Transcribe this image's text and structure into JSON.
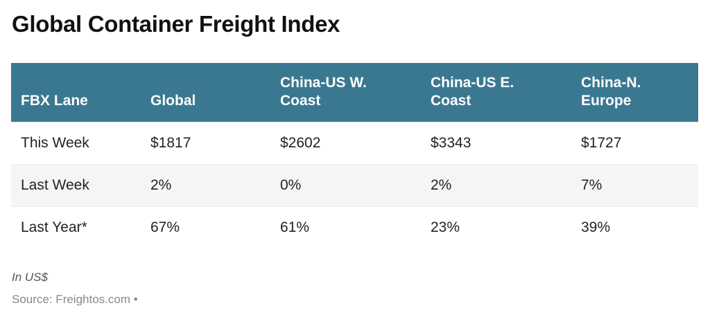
{
  "title": "Global Container Freight Index",
  "table": {
    "headers": [
      "FBX Lane",
      "Global",
      "China-US W. Coast",
      "China-US E. Coast",
      "China-N. Europe"
    ],
    "header_lines": [
      [
        "FBX Lane",
        ""
      ],
      [
        "Global",
        ""
      ],
      [
        "China-US W.",
        "Coast"
      ],
      [
        "China-US E.",
        "Coast"
      ],
      [
        "China-N.",
        "Europe"
      ]
    ],
    "rows": [
      [
        "This Week",
        "$1817",
        "$2602",
        "$3343",
        "$1727"
      ],
      [
        "Last Week",
        "2%",
        "0%",
        "2%",
        "7%"
      ],
      [
        "Last Year*",
        "67%",
        "61%",
        "23%",
        "39%"
      ]
    ]
  },
  "footer": {
    "note": "In US$",
    "source": "Source: Freightos.com •"
  },
  "colors": {
    "header_bg": "#3a7891",
    "header_text": "#ffffff",
    "alt_row_bg": "#f5f5f5"
  },
  "chart_data": {
    "type": "table",
    "title": "Global Container Freight Index",
    "columns": [
      "FBX Lane",
      "Global",
      "China-US W. Coast",
      "China-US E. Coast",
      "China-N. Europe"
    ],
    "rows": [
      {
        "label": "This Week",
        "values": [
          "$1817",
          "$2602",
          "$3343",
          "$1727"
        ]
      },
      {
        "label": "Last Week",
        "values": [
          "2%",
          "0%",
          "2%",
          "7%"
        ]
      },
      {
        "label": "Last Year*",
        "values": [
          "67%",
          "61%",
          "23%",
          "39%"
        ]
      }
    ],
    "this_week_usd": [
      1817,
      2602,
      3343,
      1727
    ],
    "last_week_pct": [
      2,
      0,
      2,
      7
    ],
    "last_year_pct": [
      67,
      61,
      23,
      39
    ],
    "units": "In US$",
    "source": "Freightos.com"
  }
}
